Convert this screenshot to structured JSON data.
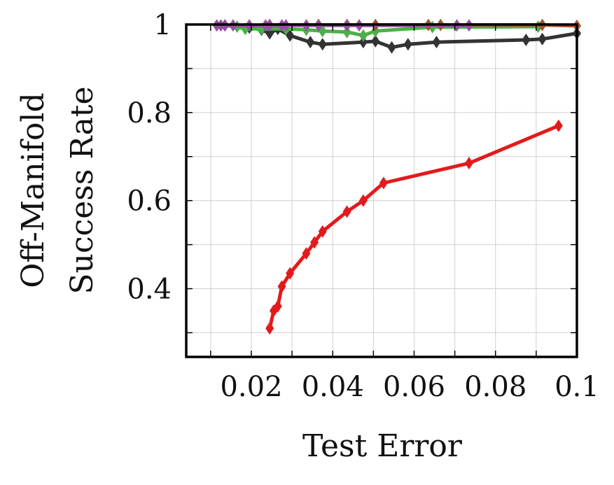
{
  "chart_data": {
    "type": "line",
    "xlabel": "Test Error",
    "ylabel_lines": [
      "Off-Manifold",
      "Success Rate"
    ],
    "xlim": [
      0.004,
      0.1
    ],
    "ylim": [
      0.245,
      1.0
    ],
    "grid": true,
    "x_ticks": [
      {
        "value": 0.02,
        "label": "0.02"
      },
      {
        "value": 0.04,
        "label": "0.04"
      },
      {
        "value": 0.06,
        "label": "0.06"
      },
      {
        "value": 0.08,
        "label": "0.08"
      },
      {
        "value": 0.1,
        "label": "0.1"
      }
    ],
    "y_ticks": [
      {
        "value": 0.4,
        "label": "0.4"
      },
      {
        "value": 0.6,
        "label": "0.6"
      },
      {
        "value": 0.8,
        "label": "0.8"
      },
      {
        "value": 1.0,
        "label": "1"
      }
    ],
    "series": [
      {
        "color": "#e31a1c",
        "points": [
          [
            0.0245,
            0.31
          ],
          [
            0.0255,
            0.35
          ],
          [
            0.0265,
            0.36
          ],
          [
            0.0275,
            0.405
          ],
          [
            0.0295,
            0.435
          ],
          [
            0.0335,
            0.48
          ],
          [
            0.0355,
            0.505
          ],
          [
            0.0375,
            0.53
          ],
          [
            0.0435,
            0.575
          ],
          [
            0.0475,
            0.6
          ],
          [
            0.0525,
            0.64
          ],
          [
            0.0735,
            0.685
          ],
          [
            0.0955,
            0.77
          ]
        ]
      },
      {
        "color": "#333333",
        "points": [
          [
            0.0135,
            0.998
          ],
          [
            0.0195,
            0.993
          ],
          [
            0.0225,
            0.988
          ],
          [
            0.0245,
            0.98
          ],
          [
            0.0265,
            0.99
          ],
          [
            0.0295,
            0.975
          ],
          [
            0.0345,
            0.96
          ],
          [
            0.0375,
            0.955
          ],
          [
            0.0475,
            0.96
          ],
          [
            0.0505,
            0.962
          ],
          [
            0.0545,
            0.948
          ],
          [
            0.0585,
            0.955
          ],
          [
            0.0655,
            0.96
          ],
          [
            0.0875,
            0.965
          ],
          [
            0.0915,
            0.967
          ],
          [
            0.1,
            0.98
          ]
        ]
      },
      {
        "color": "#4daf4a",
        "points": [
          [
            0.0165,
            0.995
          ],
          [
            0.0185,
            0.99
          ],
          [
            0.0225,
            0.99
          ],
          [
            0.0285,
            0.99
          ],
          [
            0.0335,
            0.988
          ],
          [
            0.0375,
            0.985
          ],
          [
            0.0435,
            0.983
          ],
          [
            0.0475,
            0.975
          ],
          [
            0.0505,
            0.985
          ],
          [
            0.0645,
            0.994
          ],
          [
            0.0905,
            0.995
          ]
        ]
      },
      {
        "color": "#a6522c",
        "points": [
          [
            0.0245,
            0.999
          ],
          [
            0.0365,
            0.999
          ],
          [
            0.0435,
            0.999
          ],
          [
            0.0505,
            0.999
          ],
          [
            0.0635,
            0.999
          ],
          [
            0.0665,
            0.999
          ],
          [
            0.0915,
            0.999
          ],
          [
            0.1,
            0.997
          ]
        ]
      },
      {
        "color": "#984ea3",
        "points": [
          [
            0.0115,
            0.998
          ],
          [
            0.0125,
            0.998
          ],
          [
            0.0135,
            0.998
          ],
          [
            0.0155,
            0.998
          ],
          [
            0.0195,
            0.998
          ],
          [
            0.0235,
            0.998
          ],
          [
            0.0245,
            0.998
          ],
          [
            0.0275,
            0.998
          ],
          [
            0.0285,
            0.998
          ],
          [
            0.0335,
            0.998
          ],
          [
            0.0365,
            0.998
          ],
          [
            0.0435,
            0.998
          ],
          [
            0.0465,
            0.998
          ],
          [
            0.0705,
            0.998
          ],
          [
            0.0735,
            0.998
          ]
        ]
      }
    ]
  }
}
